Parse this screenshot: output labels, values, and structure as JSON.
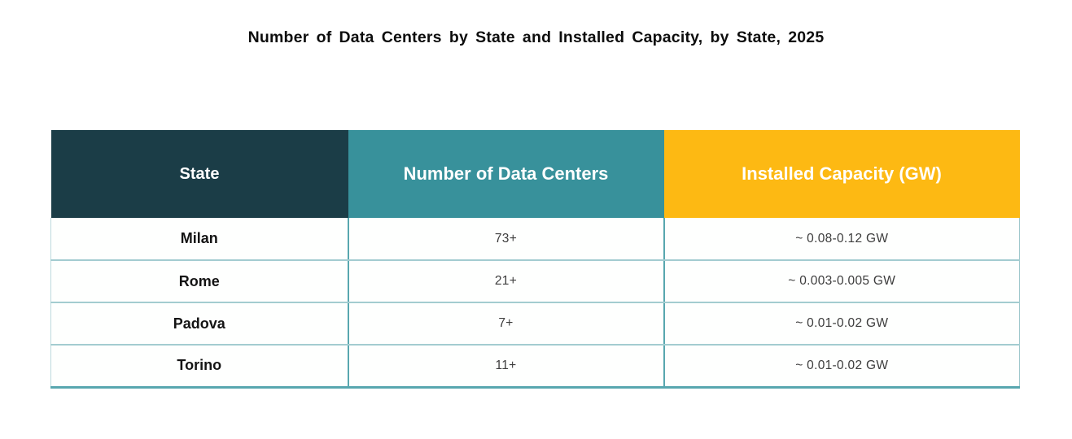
{
  "title": "Number of Data Centers by State and Installed Capacity, by State, 2025",
  "table": {
    "headers": {
      "state": "State",
      "data_centers": "Number of Data Centers",
      "capacity": "Installed Capacity (GW)"
    },
    "rows": [
      {
        "state": "Milan",
        "data_centers": "73+",
        "capacity": "~ 0.08-0.12 GW"
      },
      {
        "state": "Rome",
        "data_centers": "21+",
        "capacity": "~ 0.003-0.005 GW"
      },
      {
        "state": "Padova",
        "data_centers": "7+",
        "capacity": "~ 0.01-0.02 GW"
      },
      {
        "state": "Torino",
        "data_centers": "11+",
        "capacity": "~ 0.01-0.02 GW"
      }
    ]
  },
  "colors": {
    "header_state_bg": "#1b3d47",
    "header_count_bg": "#38919b",
    "header_capacity_bg": "#fdb913",
    "header_text": "#ffffff",
    "row_border": "#a3ccd0",
    "column_border": "#58a7af",
    "title_text": "#0d0d0d",
    "body_text": "#3c3c3c"
  },
  "chart_data": {
    "type": "table",
    "title": "Number of Data Centers by State and Installed Capacity, by State, 2025",
    "columns": [
      "State",
      "Number of Data Centers",
      "Installed Capacity (GW)"
    ],
    "rows": [
      [
        "Milan",
        "73+",
        "~ 0.08-0.12 GW"
      ],
      [
        "Rome",
        "21+",
        "~ 0.003-0.005 GW"
      ],
      [
        "Padova",
        "7+",
        "~ 0.01-0.02 GW"
      ],
      [
        "Torino",
        "11+",
        "~ 0.01-0.02 GW"
      ]
    ],
    "data_centers_numeric": [
      73,
      21,
      7,
      11
    ],
    "capacity_gw_ranges": [
      [
        0.08,
        0.12
      ],
      [
        0.003,
        0.005
      ],
      [
        0.01,
        0.02
      ],
      [
        0.01,
        0.02
      ]
    ]
  }
}
